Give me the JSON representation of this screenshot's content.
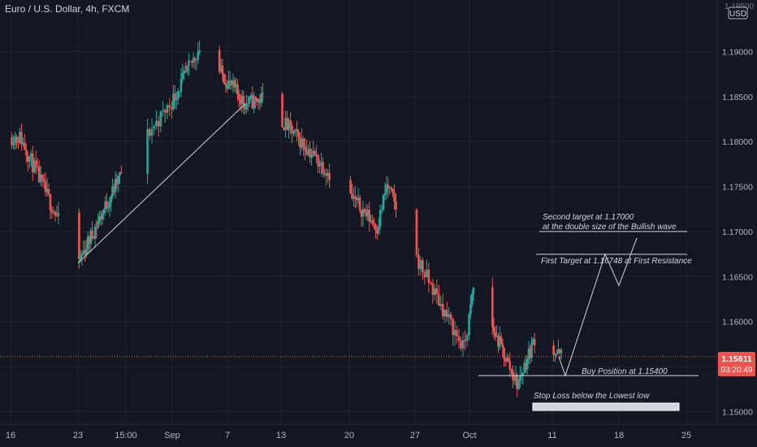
{
  "header": {
    "symbol_title": "Euro / U.S. Dollar, 4h, FXCM"
  },
  "price_axis": {
    "currency_label": "USD",
    "top_partial_label": "1.19500",
    "current_price": "1.15611",
    "countdown": "03:20:49"
  },
  "colors": {
    "background": "#131722",
    "up": "#26a69a",
    "down": "#ef5350",
    "grid": "#1f2433",
    "text": "#b2b5be",
    "annotation": "#d1d4dc",
    "price_line": "#ef5350"
  },
  "chart_data": {
    "type": "candlestick",
    "title": "Euro / U.S. Dollar, 4h, FXCM",
    "ylim": [
      1.1495,
      1.195
    ],
    "y_ticks": [
      "1.19000",
      "1.18500",
      "1.18000",
      "1.17500",
      "1.17000",
      "1.16500",
      "1.16000",
      "1.15500",
      "1.15000"
    ],
    "x_ticks": [
      "16",
      "23",
      "15:00",
      "Sep",
      "7",
      "13",
      "20",
      "27",
      "Oct",
      "11",
      "18",
      "25"
    ],
    "grid": true,
    "current_price": 1.15611,
    "swing_points": [
      {
        "date": "Aug 16",
        "price": 1.1805
      },
      {
        "date": "Aug 22",
        "price": 1.1665
      },
      {
        "date": "Sep 3",
        "price": 1.1905
      },
      {
        "date": "Sep 8",
        "price": 1.1842
      },
      {
        "date": "Sep 10",
        "price": 1.1848
      },
      {
        "date": "Sep 22",
        "price": 1.1705
      },
      {
        "date": "Sep 23",
        "price": 1.1752
      },
      {
        "date": "Sep 30",
        "price": 1.157
      },
      {
        "date": "Oct 1",
        "price": 1.164
      },
      {
        "date": "Oct 6",
        "price": 1.153
      },
      {
        "date": "Oct 8",
        "price": 1.1582
      },
      {
        "date": "Oct 11",
        "price": 1.1561
      }
    ],
    "annotations": {
      "second_target_line1": "Second target at 1.17000",
      "second_target_line2": "at the double size of the Bullish wave",
      "first_target": "First Target at 1.16748 at First Resistance",
      "buy_position": "Buy Position at 1.15400",
      "stop_loss": "Stop Loss below the Lowest low"
    },
    "levels": [
      {
        "label": "Second target",
        "price": 1.17
      },
      {
        "label": "First Target",
        "price": 1.16748
      },
      {
        "label": "Buy Position",
        "price": 1.154
      }
    ]
  }
}
